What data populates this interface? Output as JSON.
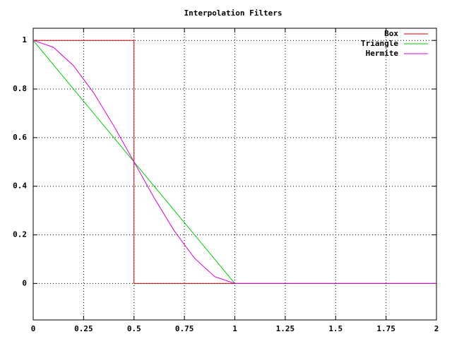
{
  "chart_data": {
    "type": "line",
    "title": "Interpolation Filters",
    "xlim": [
      0,
      2
    ],
    "ylim": [
      -0.15,
      1.05
    ],
    "xticks": [
      0,
      0.25,
      0.5,
      0.75,
      1,
      1.25,
      1.5,
      1.75,
      2
    ],
    "yticks": [
      0,
      0.2,
      0.4,
      0.6,
      0.8,
      1
    ],
    "grid": true,
    "legend": "top-right",
    "series": [
      {
        "name": "Box",
        "color": "#e00000",
        "x": [
          0,
          0.5,
          0.5,
          2
        ],
        "values": [
          1,
          1,
          0,
          0
        ]
      },
      {
        "name": "Triangle",
        "color": "#00d000",
        "x": [
          0,
          1,
          2
        ],
        "values": [
          1,
          0,
          0
        ]
      },
      {
        "name": "Hermite",
        "color": "#e000e0",
        "x": [
          0,
          0.1,
          0.2,
          0.3,
          0.4,
          0.5,
          0.6,
          0.7,
          0.8,
          0.9,
          1,
          2
        ],
        "values": [
          1,
          0.972,
          0.896,
          0.784,
          0.648,
          0.5,
          0.352,
          0.216,
          0.104,
          0.028,
          0,
          0
        ]
      }
    ]
  }
}
